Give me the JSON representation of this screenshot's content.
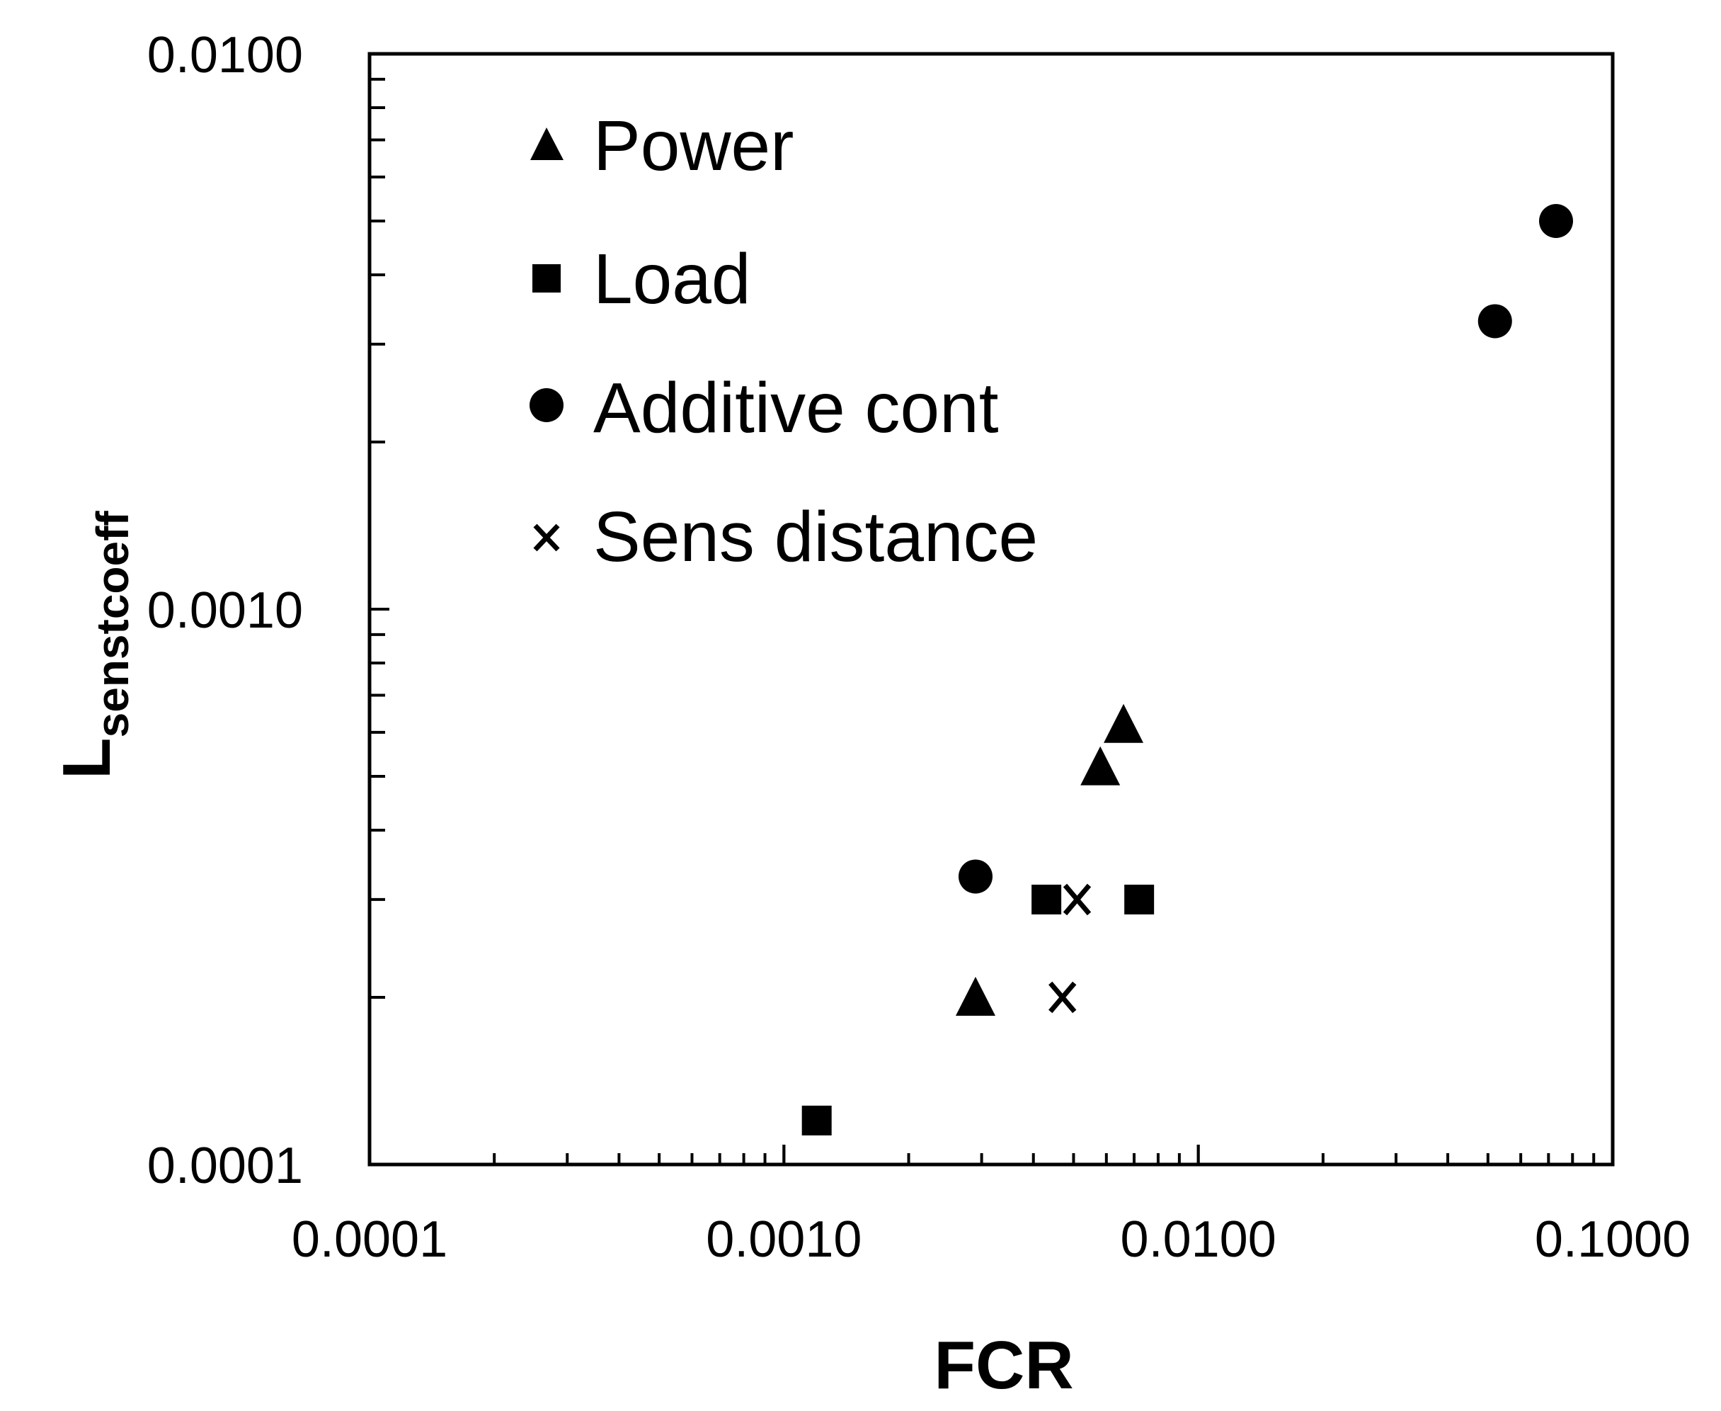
{
  "chart_data": {
    "type": "scatter",
    "title": "",
    "xlabel": "FCR",
    "ylabel": "L",
    "ylabel_subscript": "senstcoeff",
    "xscale": "log",
    "yscale": "log",
    "xlim": [
      0.0001,
      0.1
    ],
    "ylim": [
      0.0001,
      0.01
    ],
    "x_tick_labels": [
      "0.0001",
      "0.0010",
      "0.0100",
      "0.1000"
    ],
    "y_tick_labels": [
      "0.0001",
      "0.0010",
      "0.0100"
    ],
    "grid": false,
    "legend_position": "top-left",
    "series": [
      {
        "name": "Power",
        "marker": "triangle",
        "points": [
          [
            0.0029,
            0.0002
          ],
          [
            0.0058,
            0.00052
          ],
          [
            0.0066,
            0.00062
          ]
        ]
      },
      {
        "name": "Load",
        "marker": "square",
        "points": [
          [
            0.0012,
            0.00012
          ],
          [
            0.0043,
            0.0003
          ],
          [
            0.0072,
            0.0003
          ]
        ]
      },
      {
        "name": "Additive cont",
        "marker": "circle",
        "points": [
          [
            0.0029,
            0.00033
          ],
          [
            0.052,
            0.0033
          ],
          [
            0.073,
            0.005
          ]
        ]
      },
      {
        "name": "Sens distance",
        "marker": "x",
        "points": [
          [
            0.0047,
            0.0002
          ],
          [
            0.0051,
            0.0003
          ]
        ]
      }
    ]
  }
}
